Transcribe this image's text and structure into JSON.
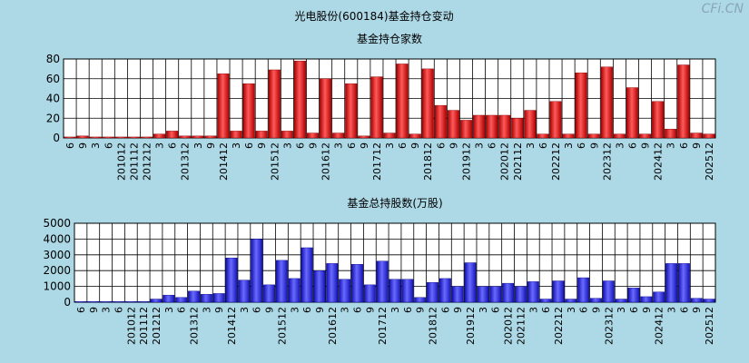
{
  "page": {
    "title": "光电股份(600184)基金持仓变动",
    "watermark": "CFi.CN"
  },
  "chart_data": [
    {
      "type": "bar",
      "title": "基金持仓家数",
      "ylim": [
        0,
        80
      ],
      "yticks": [
        0,
        20,
        40,
        60,
        80
      ],
      "tick_labels": [
        "6",
        "9",
        "3",
        "6",
        "201012",
        "201112",
        "201212",
        "3",
        "6",
        "201312",
        "3",
        "9",
        "201412",
        "3",
        "6",
        "9",
        "201512",
        "3",
        "6",
        "9",
        "201612",
        "3",
        "6",
        "9",
        "201712",
        "3",
        "6",
        "9",
        "201812",
        "6",
        "9",
        "201912",
        "3",
        "6",
        "202012",
        "202112",
        "3",
        "6",
        "202212",
        "3",
        "6",
        "9",
        "202312",
        "3",
        "6",
        "9",
        "202412",
        "3",
        "6",
        "9",
        "202512"
      ],
      "values": [
        1,
        2,
        1,
        1,
        1,
        1,
        1,
        4,
        7,
        2,
        2,
        2,
        65,
        7,
        55,
        7,
        69,
        7,
        78,
        5,
        60,
        5,
        55,
        2,
        62,
        5,
        75,
        4,
        70,
        33,
        28,
        18,
        23,
        23,
        23,
        20,
        28,
        4,
        37,
        4,
        66,
        4,
        72,
        4,
        51,
        4,
        37,
        9,
        74,
        5,
        4
      ]
    },
    {
      "type": "bar",
      "title": "基金总持股数(万股)",
      "ylim": [
        0,
        5000
      ],
      "yticks": [
        0,
        1000,
        2000,
        3000,
        4000,
        5000
      ],
      "tick_labels": [
        "6",
        "9",
        "3",
        "6",
        "201012",
        "201112",
        "201212",
        "3",
        "6",
        "201312",
        "3",
        "9",
        "201412",
        "3",
        "6",
        "9",
        "201512",
        "3",
        "6",
        "9",
        "201612",
        "3",
        "6",
        "9",
        "201712",
        "3",
        "6",
        "9",
        "201812",
        "6",
        "9",
        "201912",
        "3",
        "6",
        "202012",
        "202112",
        "3",
        "6",
        "202212",
        "3",
        "6",
        "9",
        "202312",
        "3",
        "6",
        "9",
        "202412",
        "3",
        "6",
        "9",
        "202512"
      ],
      "values": [
        30,
        50,
        30,
        30,
        30,
        30,
        200,
        450,
        300,
        700,
        500,
        550,
        2800,
        1400,
        4000,
        1100,
        2650,
        1500,
        3450,
        2000,
        2450,
        1450,
        2400,
        1100,
        2600,
        1450,
        1450,
        300,
        1250,
        1500,
        1000,
        2500,
        1000,
        1000,
        1200,
        1000,
        1300,
        200,
        1350,
        200,
        1550,
        250,
        1350,
        200,
        900,
        350,
        650,
        2450,
        2450,
        250,
        200
      ]
    }
  ]
}
